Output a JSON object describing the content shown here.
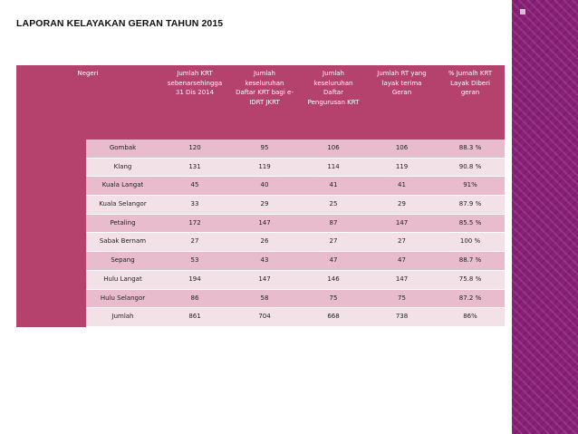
{
  "title": "LAPORAN KELAYAKAN GERAN TAHUN 2015",
  "table": {
    "headers": [
      [
        "Negeri"
      ],
      [
        "Jumlah KRT",
        "sebenarsehingga",
        "31 Dis 2014"
      ],
      [
        "Jumlah",
        "keseluruhan",
        "Daftar KRT bagi e-",
        "IDRT JKRT"
      ],
      [
        "Jumlah",
        "keseluruhan",
        "Daftar",
        "Pengurusan KRT"
      ],
      [
        "Jumlah RT yang",
        "layak terima",
        "Geran"
      ],
      [
        "% Jumalh KRT",
        "Layak Diberi",
        "geran"
      ]
    ],
    "rows": [
      [
        "Gombak",
        "120",
        "95",
        "106",
        "106",
        "88.3 %"
      ],
      [
        "Klang",
        "131",
        "119",
        "114",
        "119",
        "90.8 %"
      ],
      [
        "Kuala Langat",
        "45",
        "40",
        "41",
        "41",
        "91%"
      ],
      [
        "Kuala Selangor",
        "33",
        "29",
        "25",
        "29",
        "87.9 %"
      ],
      [
        "Petaling",
        "172",
        "147",
        "87",
        "147",
        "85.5 %"
      ],
      [
        "Sabak Bernam",
        "27",
        "26",
        "27",
        "27",
        "100 %"
      ],
      [
        "Sepang",
        "53",
        "43",
        "47",
        "47",
        "88.7 %"
      ],
      [
        "Hulu Langat",
        "194",
        "147",
        "146",
        "147",
        "75.8 %"
      ],
      [
        "Hulu Selangor",
        "86",
        "58",
        "75",
        "75",
        "87.2 %"
      ],
      [
        "Jumlah",
        "861",
        "704",
        "668",
        "738",
        "86%"
      ]
    ]
  },
  "colors": {
    "header": "#b5416d",
    "row_odd": "#e8bccc",
    "row_even": "#f3e1e8",
    "side_band": "#8a1f78"
  }
}
